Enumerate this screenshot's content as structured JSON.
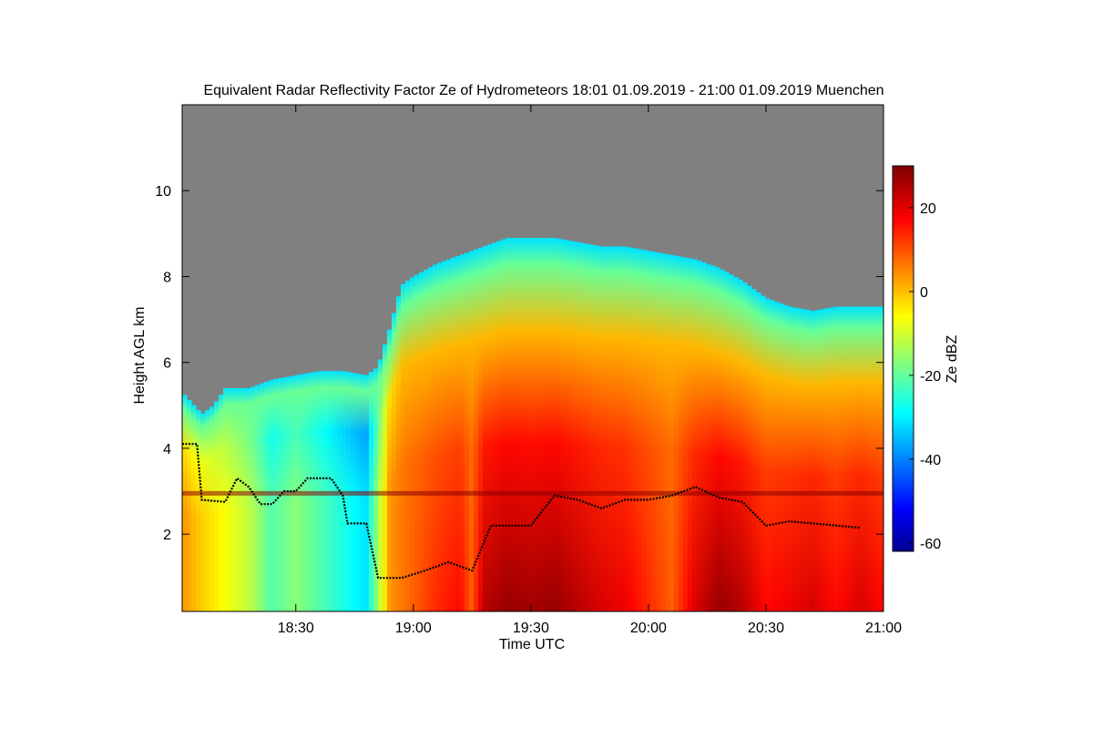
{
  "chart_data": {
    "type": "heatmap",
    "title": "Equivalent Radar Reflectivity Factor Ze of Hydrometeors   18:01 01.09.2019 - 21:00 01.09.2019 Muenchen",
    "xlabel": "Time UTC",
    "ylabel": "Height AGL km",
    "colorbar_label": "Ze dBZ",
    "x_tick_labels": [
      "18:30",
      "19:00",
      "19:30",
      "20:00",
      "20:30",
      "21:00"
    ],
    "x_ticks_hours": [
      18.5,
      19.0,
      19.5,
      20.0,
      20.5,
      21.0
    ],
    "xlim_hours": [
      18.0167,
      21.0
    ],
    "y_ticks": [
      2,
      4,
      6,
      8,
      10
    ],
    "ylim": [
      0.2,
      12.0
    ],
    "colorbar_ticks": [
      -60,
      -40,
      -20,
      0,
      20
    ],
    "colorbar_range": [
      -62,
      30
    ],
    "colormap": "jet",
    "no_signal_color": "#808080",
    "echo_top_km": [
      [
        18.0167,
        5.3
      ],
      [
        18.1,
        4.8
      ],
      [
        18.15,
        5.0
      ],
      [
        18.2,
        5.4
      ],
      [
        18.3,
        5.4
      ],
      [
        18.4,
        5.6
      ],
      [
        18.5,
        5.7
      ],
      [
        18.6,
        5.8
      ],
      [
        18.7,
        5.8
      ],
      [
        18.8,
        5.7
      ],
      [
        18.85,
        5.9
      ],
      [
        18.9,
        6.8
      ],
      [
        18.95,
        7.8
      ],
      [
        19.0,
        8.0
      ],
      [
        19.1,
        8.3
      ],
      [
        19.2,
        8.5
      ],
      [
        19.3,
        8.7
      ],
      [
        19.4,
        8.9
      ],
      [
        19.5,
        8.9
      ],
      [
        19.6,
        8.9
      ],
      [
        19.7,
        8.8
      ],
      [
        19.8,
        8.7
      ],
      [
        19.9,
        8.7
      ],
      [
        20.0,
        8.6
      ],
      [
        20.1,
        8.5
      ],
      [
        20.2,
        8.4
      ],
      [
        20.3,
        8.2
      ],
      [
        20.4,
        7.9
      ],
      [
        20.5,
        7.5
      ],
      [
        20.6,
        7.3
      ],
      [
        20.7,
        7.2
      ],
      [
        20.8,
        7.3
      ],
      [
        20.9,
        7.3
      ],
      [
        21.0,
        7.3
      ]
    ],
    "melting_layer_km": 2.95,
    "cloud_base_km": [
      [
        18.0167,
        4.1
      ],
      [
        18.08,
        4.1
      ],
      [
        18.1,
        2.8
      ],
      [
        18.2,
        2.75
      ],
      [
        18.25,
        3.3
      ],
      [
        18.3,
        3.1
      ],
      [
        18.35,
        2.7
      ],
      [
        18.4,
        2.7
      ],
      [
        18.45,
        3.0
      ],
      [
        18.5,
        3.0
      ],
      [
        18.55,
        3.3
      ],
      [
        18.65,
        3.3
      ],
      [
        18.7,
        2.9
      ],
      [
        18.72,
        2.25
      ],
      [
        18.8,
        2.25
      ],
      [
        18.85,
        0.98
      ],
      [
        18.95,
        0.98
      ],
      [
        19.05,
        1.15
      ],
      [
        19.15,
        1.35
      ],
      [
        19.25,
        1.15
      ],
      [
        19.33,
        2.2
      ],
      [
        19.5,
        2.2
      ],
      [
        19.6,
        2.9
      ],
      [
        19.7,
        2.8
      ],
      [
        19.8,
        2.6
      ],
      [
        19.9,
        2.8
      ],
      [
        20.0,
        2.8
      ],
      [
        20.1,
        2.9
      ],
      [
        20.2,
        3.1
      ],
      [
        20.3,
        2.85
      ],
      [
        20.4,
        2.75
      ],
      [
        20.5,
        2.2
      ],
      [
        20.6,
        2.3
      ],
      [
        20.7,
        2.25
      ],
      [
        20.8,
        2.2
      ],
      [
        20.9,
        2.15
      ]
    ],
    "surface_ze_dbz": [
      [
        18.0167,
        5
      ],
      [
        18.1,
        0
      ],
      [
        18.2,
        -5
      ],
      [
        18.3,
        -10
      ],
      [
        18.4,
        -20
      ],
      [
        18.5,
        -15
      ],
      [
        18.6,
        -20
      ],
      [
        18.7,
        -25
      ],
      [
        18.8,
        -30
      ],
      [
        18.9,
        5
      ],
      [
        19.0,
        10
      ],
      [
        19.1,
        15
      ],
      [
        19.2,
        18
      ],
      [
        19.25,
        10
      ],
      [
        19.3,
        25
      ],
      [
        19.4,
        28
      ],
      [
        19.5,
        27
      ],
      [
        19.6,
        28
      ],
      [
        19.7,
        25
      ],
      [
        19.8,
        22
      ],
      [
        19.9,
        20
      ],
      [
        20.0,
        15
      ],
      [
        20.1,
        10
      ],
      [
        20.2,
        22
      ],
      [
        20.3,
        28
      ],
      [
        20.4,
        25
      ],
      [
        20.5,
        18
      ],
      [
        20.6,
        20
      ],
      [
        20.7,
        22
      ],
      [
        20.8,
        18
      ],
      [
        20.9,
        22
      ],
      [
        21.0,
        18
      ]
    ]
  }
}
